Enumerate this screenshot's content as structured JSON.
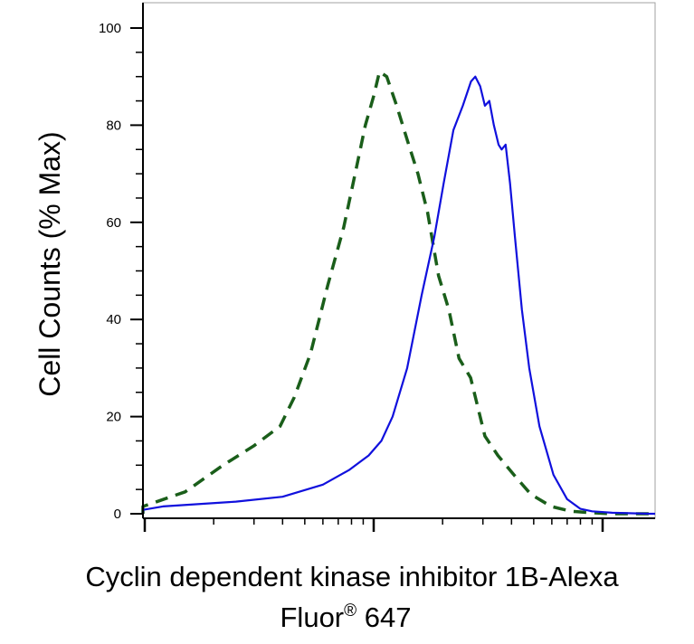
{
  "chart_data": {
    "type": "line",
    "title": "",
    "xlabel_line1": "Cyclin dependent kinase inhibitor 1B-Alexa",
    "xlabel_line2_main": "Fluor",
    "xlabel_line2_sup": "®",
    "xlabel_line2_tail": " 647",
    "ylabel": "Cell Counts (% Max)",
    "ylim": [
      0,
      100
    ],
    "xscale": "log",
    "xlim": [
      0.1,
      1000
    ],
    "x_major_ticks": [
      1,
      10,
      100,
      1000
    ],
    "y_ticks": [
      0,
      20,
      40,
      60,
      80,
      100
    ],
    "y_tick_labels": [
      "0",
      "20",
      "40",
      "60",
      "80",
      "100"
    ],
    "legend": "none",
    "grid": false,
    "series": [
      {
        "color": "#1a5e1a",
        "dash": true,
        "x": [
          0.1,
          0.25,
          0.5,
          0.9,
          1.5,
          2.2,
          3.0,
          3.9,
          4.5,
          5.3,
          6.3,
          7.4,
          8.3,
          9.2,
          10.0,
          10.6,
          11.4,
          12.6,
          14.0,
          15.6,
          17.2,
          19.2,
          21.3,
          23.6,
          26.5,
          30.6,
          34.9,
          41.0,
          48.6,
          59.6,
          73.0,
          89.7,
          110.0,
          160.0,
          250.0,
          400.0,
          1000.0
        ],
        "y": [
          0,
          0.2,
          0.6,
          1.5,
          4.5,
          10,
          14,
          18,
          24,
          33,
          47,
          59,
          70,
          80,
          86,
          91,
          90,
          84,
          77,
          70,
          62,
          49,
          42,
          32,
          28,
          16,
          12,
          8,
          4,
          1.5,
          0.5,
          0.2,
          0,
          0,
          0,
          0,
          0
        ]
      },
      {
        "color": "#1010dd",
        "dash": false,
        "x": [
          0.1,
          0.3,
          0.6,
          1.2,
          2.5,
          4.0,
          6.0,
          7.8,
          9.5,
          10.8,
          12.1,
          14.0,
          16.2,
          18.4,
          20.2,
          22.3,
          24.5,
          26.6,
          27.8,
          29.2,
          30.6,
          32.0,
          33.5,
          35.1,
          36.2,
          37.7,
          39.4,
          41.4,
          44.4,
          47.8,
          53.0,
          61.0,
          70.0,
          80.0,
          90.0,
          110.0,
          160.0,
          300.0,
          1000.0
        ],
        "y": [
          0,
          0.3,
          0.8,
          1.5,
          2.5,
          3.5,
          6,
          9,
          12,
          15,
          20,
          30,
          45,
          57,
          68,
          79,
          84,
          89,
          90,
          88,
          84,
          85,
          80,
          76,
          75,
          76,
          68,
          57,
          42,
          30,
          18,
          8,
          3,
          1,
          0.5,
          0.2,
          0,
          0,
          0
        ]
      }
    ]
  }
}
